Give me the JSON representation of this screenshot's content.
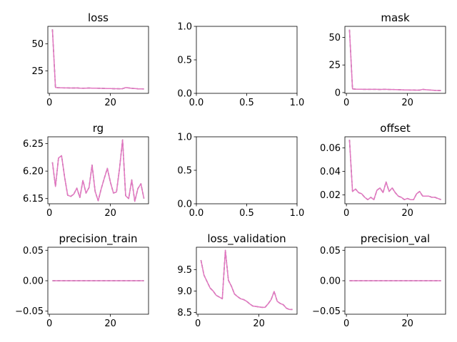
{
  "chart_data": [
    {
      "type": "line",
      "title": "loss",
      "xlim": [
        -0.5,
        32.5
      ],
      "ylim": [
        4.3,
        66.0
      ],
      "xticks": [
        0,
        20
      ],
      "xtick_labels": [
        "0",
        "20"
      ],
      "yticks": [
        25,
        50
      ],
      "ytick_labels": [
        "25",
        "50"
      ],
      "color": "#e377c2",
      "shadow_color": "#555555",
      "x": [
        1,
        2,
        3,
        4,
        5,
        6,
        7,
        8,
        9,
        10,
        11,
        12,
        13,
        14,
        15,
        16,
        17,
        18,
        19,
        20,
        21,
        22,
        23,
        24,
        25,
        26,
        27,
        28,
        29,
        30,
        31
      ],
      "y": [
        63.2,
        9.7,
        9.5,
        9.4,
        9.3,
        9.3,
        9.2,
        9.2,
        9.3,
        9.1,
        9.0,
        9.1,
        9.2,
        9.1,
        9.1,
        9.0,
        8.9,
        8.8,
        8.7,
        8.7,
        8.6,
        8.6,
        8.5,
        8.6,
        9.6,
        9.3,
        8.9,
        8.7,
        8.5,
        8.4,
        8.3
      ]
    },
    {
      "type": "empty",
      "title": "",
      "xlim": [
        0,
        1
      ],
      "ylim": [
        0,
        1
      ],
      "xticks": [
        0,
        0.5,
        1
      ],
      "xtick_labels": [
        "0.0",
        "0.5",
        "1.0"
      ],
      "yticks": [
        0,
        0.5,
        1
      ],
      "ytick_labels": [
        "0.0",
        "0.5",
        "1.0"
      ],
      "color": "#e377c2",
      "shadow_color": "#555555",
      "x": [],
      "y": []
    },
    {
      "type": "line",
      "title": "mask",
      "xlim": [
        -0.5,
        32.5
      ],
      "ylim": [
        -0.7,
        60.0
      ],
      "xticks": [
        0,
        20
      ],
      "xtick_labels": [
        "0",
        "20"
      ],
      "yticks": [
        0,
        25,
        50
      ],
      "ytick_labels": [
        "0",
        "25",
        "50"
      ],
      "color": "#e377c2",
      "shadow_color": "#555555",
      "x": [
        1,
        2,
        3,
        4,
        5,
        6,
        7,
        8,
        9,
        10,
        11,
        12,
        13,
        14,
        15,
        16,
        17,
        18,
        19,
        20,
        21,
        22,
        23,
        24,
        25,
        26,
        27,
        28,
        29,
        30,
        31
      ],
      "y": [
        57.0,
        3.3,
        3.1,
        3.0,
        3.0,
        2.9,
        2.9,
        2.9,
        2.9,
        2.9,
        2.8,
        2.9,
        2.9,
        2.8,
        2.8,
        2.7,
        2.6,
        2.5,
        2.4,
        2.4,
        2.3,
        2.3,
        2.2,
        2.2,
        2.9,
        2.6,
        2.4,
        2.2,
        2.0,
        1.9,
        1.8
      ]
    },
    {
      "type": "line",
      "title": "rg",
      "xlim": [
        -0.5,
        32.5
      ],
      "ylim": [
        6.1405,
        6.2625
      ],
      "xticks": [
        0,
        20
      ],
      "xtick_labels": [
        "0",
        "20"
      ],
      "yticks": [
        6.15,
        6.2,
        6.25
      ],
      "ytick_labels": [
        "6.15",
        "6.20",
        "6.25"
      ],
      "color": "#e377c2",
      "shadow_color": "#555555",
      "x": [
        1,
        2,
        3,
        4,
        5,
        6,
        7,
        8,
        9,
        10,
        11,
        12,
        13,
        14,
        15,
        16,
        17,
        18,
        19,
        20,
        21,
        22,
        23,
        24,
        25,
        26,
        27,
        28,
        29,
        30,
        31
      ],
      "y": [
        6.216,
        6.172,
        6.224,
        6.228,
        6.189,
        6.156,
        6.154,
        6.158,
        6.169,
        6.152,
        6.183,
        6.16,
        6.17,
        6.211,
        6.163,
        6.146,
        6.168,
        6.187,
        6.205,
        6.18,
        6.16,
        6.162,
        6.205,
        6.257,
        6.155,
        6.15,
        6.184,
        6.145,
        6.168,
        6.177,
        6.15
      ]
    },
    {
      "type": "empty",
      "title": "",
      "xlim": [
        0,
        1
      ],
      "ylim": [
        0,
        1
      ],
      "xticks": [
        0,
        0.5,
        1
      ],
      "xtick_labels": [
        "0.0",
        "0.5",
        "1.0"
      ],
      "yticks": [
        0,
        0.5,
        1
      ],
      "ytick_labels": [
        "0.0",
        "0.5",
        "1.0"
      ],
      "color": "#e377c2",
      "shadow_color": "#555555",
      "x": [],
      "y": []
    },
    {
      "type": "line",
      "title": "offset",
      "xlim": [
        -0.5,
        32.5
      ],
      "ylim": [
        0.0125,
        0.0695
      ],
      "xticks": [
        0,
        20
      ],
      "xtick_labels": [
        "0",
        "20"
      ],
      "yticks": [
        0.02,
        0.04,
        0.06
      ],
      "ytick_labels": [
        "0.02",
        "0.04",
        "0.06"
      ],
      "color": "#e377c2",
      "shadow_color": "#555555",
      "x": [
        1,
        2,
        3,
        4,
        5,
        6,
        7,
        8,
        9,
        10,
        11,
        12,
        13,
        14,
        15,
        16,
        17,
        18,
        19,
        20,
        21,
        22,
        23,
        24,
        25,
        26,
        27,
        28,
        29,
        30,
        31
      ],
      "y": [
        0.067,
        0.023,
        0.025,
        0.022,
        0.021,
        0.018,
        0.016,
        0.018,
        0.016,
        0.024,
        0.026,
        0.022,
        0.031,
        0.023,
        0.026,
        0.022,
        0.019,
        0.018,
        0.016,
        0.017,
        0.016,
        0.016,
        0.021,
        0.023,
        0.019,
        0.019,
        0.019,
        0.018,
        0.018,
        0.017,
        0.016
      ]
    },
    {
      "type": "line",
      "title": "precision_train",
      "xlim": [
        -0.5,
        32.5
      ],
      "ylim": [
        -0.055,
        0.055
      ],
      "xticks": [
        0,
        20
      ],
      "xtick_labels": [
        "0",
        "20"
      ],
      "yticks": [
        -0.05,
        0,
        0.05
      ],
      "ytick_labels": [
        "−0.05",
        "0.00",
        "0.05"
      ],
      "color": "#e377c2",
      "shadow_color": "#555555",
      "x": [
        1,
        2,
        3,
        4,
        5,
        6,
        7,
        8,
        9,
        10,
        11,
        12,
        13,
        14,
        15,
        16,
        17,
        18,
        19,
        20,
        21,
        22,
        23,
        24,
        25,
        26,
        27,
        28,
        29,
        30,
        31
      ],
      "y": [
        0,
        0,
        0,
        0,
        0,
        0,
        0,
        0,
        0,
        0,
        0,
        0,
        0,
        0,
        0,
        0,
        0,
        0,
        0,
        0,
        0,
        0,
        0,
        0,
        0,
        0,
        0,
        0,
        0,
        0,
        0
      ]
    },
    {
      "type": "line",
      "title": "loss_validation",
      "xlim": [
        -0.5,
        32.5
      ],
      "ylim": [
        8.46,
        10.02
      ],
      "xticks": [
        0,
        20
      ],
      "xtick_labels": [
        "0",
        "20"
      ],
      "yticks": [
        8.5,
        9.0,
        9.5
      ],
      "ytick_labels": [
        "8.5",
        "9.0",
        "9.5"
      ],
      "color": "#e377c2",
      "shadow_color": "#555555",
      "x": [
        1,
        2,
        3,
        4,
        5,
        6,
        7,
        8,
        9,
        10,
        11,
        12,
        13,
        14,
        15,
        16,
        17,
        18,
        19,
        20,
        21,
        22,
        23,
        24,
        25,
        26,
        27,
        28,
        29,
        30,
        31
      ],
      "y": [
        9.72,
        9.37,
        9.22,
        9.07,
        9.0,
        8.9,
        8.86,
        8.82,
        9.95,
        9.25,
        9.11,
        8.93,
        8.87,
        8.82,
        8.8,
        8.76,
        8.7,
        8.65,
        8.64,
        8.63,
        8.62,
        8.62,
        8.7,
        8.8,
        8.99,
        8.76,
        8.71,
        8.68,
        8.6,
        8.57,
        8.57
      ]
    },
    {
      "type": "line",
      "title": "precision_val",
      "xlim": [
        -0.5,
        32.5
      ],
      "ylim": [
        -0.055,
        0.055
      ],
      "xticks": [
        0,
        20
      ],
      "xtick_labels": [
        "0",
        "20"
      ],
      "yticks": [
        -0.05,
        0,
        0.05
      ],
      "ytick_labels": [
        "−0.05",
        "0.00",
        "0.05"
      ],
      "color": "#e377c2",
      "shadow_color": "#555555",
      "x": [
        1,
        2,
        3,
        4,
        5,
        6,
        7,
        8,
        9,
        10,
        11,
        12,
        13,
        14,
        15,
        16,
        17,
        18,
        19,
        20,
        21,
        22,
        23,
        24,
        25,
        26,
        27,
        28,
        29,
        30,
        31
      ],
      "y": [
        0,
        0,
        0,
        0,
        0,
        0,
        0,
        0,
        0,
        0,
        0,
        0,
        0,
        0,
        0,
        0,
        0,
        0,
        0,
        0,
        0,
        0,
        0,
        0,
        0,
        0,
        0,
        0,
        0,
        0,
        0
      ]
    }
  ]
}
